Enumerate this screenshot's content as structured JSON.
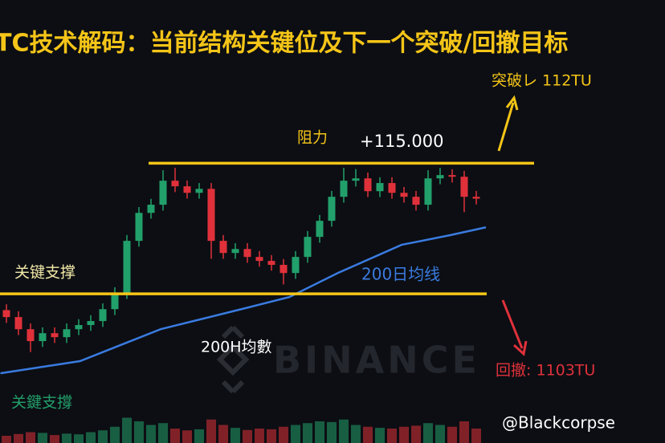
{
  "chart_data": {
    "type": "candlestick",
    "title": "TC技术解码：当前结构关键位及下一个突破/回撤目标",
    "ylim": [
      103000,
      122000
    ],
    "up_color": "#22a06b",
    "down_color": "#e0313b",
    "open": [
      108700,
      108400,
      107880,
      107370,
      107710,
      107540,
      107880,
      108060,
      108230,
      108740,
      109430,
      111670,
      112870,
      113220,
      114250,
      114010,
      113730,
      113900,
      111670,
      111150,
      111320,
      110980,
      110810,
      110640,
      110290,
      110980,
      111840,
      112530,
      113560,
      114250,
      114350,
      113800,
      114150,
      113730,
      113560,
      113220,
      114350,
      114490,
      114420,
      113560
    ],
    "high": [
      108950,
      108650,
      108130,
      107960,
      107960,
      108130,
      108310,
      108480,
      108990,
      109680,
      111920,
      113120,
      113470,
      114700,
      114800,
      114260,
      114150,
      114150,
      111920,
      111570,
      111570,
      111230,
      111060,
      110890,
      111230,
      112090,
      112780,
      113810,
      114800,
      114750,
      114600,
      114400,
      114400,
      113980,
      113810,
      114700,
      114800,
      114740,
      114670,
      113810
    ],
    "low": [
      108150,
      107630,
      106900,
      107120,
      107290,
      107290,
      107630,
      107810,
      107980,
      108490,
      109180,
      111420,
      112620,
      112970,
      113760,
      113480,
      113480,
      110900,
      110900,
      110900,
      110730,
      110560,
      110390,
      109800,
      110040,
      110730,
      111590,
      112280,
      113310,
      114000,
      113550,
      113550,
      113480,
      113310,
      112970,
      112970,
      114100,
      114170,
      112900,
      113230
    ],
    "close": [
      108400,
      107880,
      107370,
      107710,
      107540,
      107880,
      108060,
      108230,
      108740,
      109430,
      111670,
      112870,
      113220,
      114250,
      114010,
      113730,
      113900,
      111670,
      111150,
      111320,
      110980,
      110810,
      110640,
      110290,
      110980,
      111840,
      112530,
      113560,
      114250,
      114350,
      113800,
      114150,
      113730,
      113560,
      113220,
      114350,
      114490,
      114420,
      113560,
      113480
    ],
    "volume": [
      20,
      25,
      30,
      28,
      22,
      26,
      24,
      30,
      35,
      45,
      70,
      60,
      50,
      55,
      40,
      35,
      38,
      65,
      50,
      42,
      36,
      40,
      38,
      45,
      50,
      55,
      60,
      58,
      65,
      50,
      45,
      42,
      40,
      45,
      48,
      55,
      50,
      45,
      60,
      40
    ],
    "volume_lim": [
      0,
      100
    ],
    "moving_average": {
      "name": "200日均线",
      "color": "#3a7be0",
      "x": [
        -0.5,
        6.1,
        12.8,
        19.5,
        23.5,
        27.5,
        32.8,
        36.8,
        39.8
      ],
      "values": [
        105990,
        106510,
        107880,
        108740,
        109260,
        110290,
        111500,
        111910,
        112250
      ]
    },
    "resistance": {
      "name": "阻力",
      "value": 115000,
      "label": "+115.000",
      "color": "#f5c518"
    },
    "support": {
      "name": "关键支撑",
      "value": 109400,
      "color": "#f5c518"
    },
    "annotations": {
      "breakout": "突破レ 112TU",
      "pullback": "回撤: 1103TU",
      "ma_note": "200H均數",
      "support_note": "关鍵支撐",
      "watermark": "BINANCE",
      "handle": "@Blackcorpse"
    }
  }
}
